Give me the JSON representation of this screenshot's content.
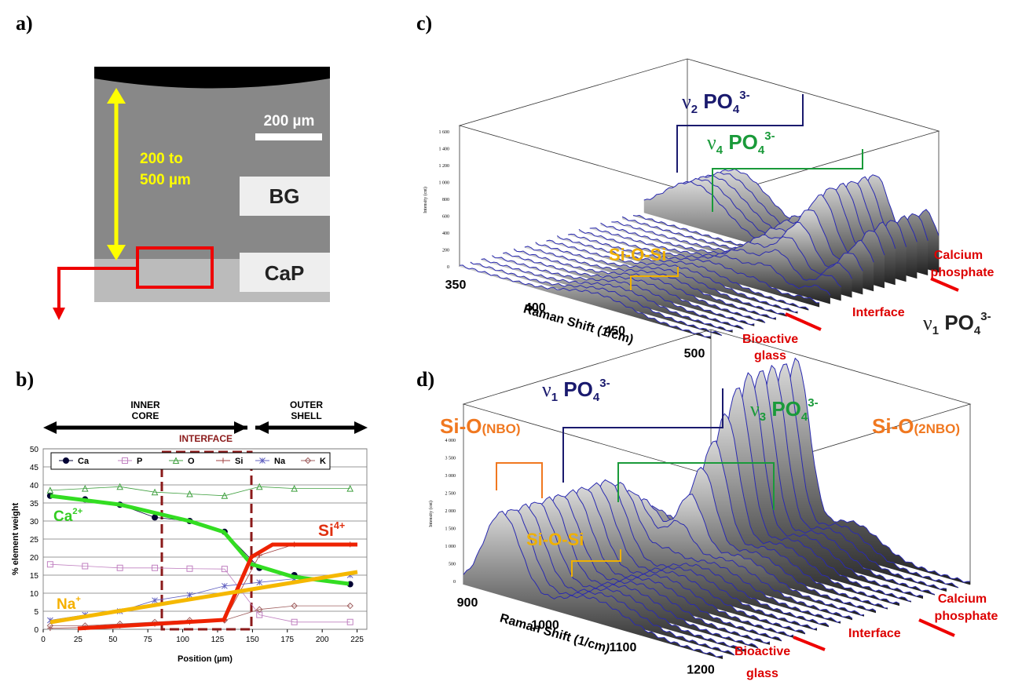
{
  "panels": {
    "a": {
      "label": "a)",
      "scale_bar": "200 µm",
      "thickness": [
        "200   to",
        "500 µm"
      ],
      "bg": "BG",
      "cap": "CaP"
    },
    "b": {
      "label": "b)",
      "inner": [
        "INNER",
        "CORE"
      ],
      "outer": [
        "OUTER",
        "SHELL"
      ],
      "interface": "INTERFACE",
      "ca_ion": [
        "Ca",
        "2+"
      ],
      "si_ion": [
        "Si",
        "4+"
      ],
      "na_ion": [
        "Na",
        "+"
      ]
    },
    "c": {
      "label": "c)",
      "y_axis": "Intensity (cnt)",
      "yticks": [
        "0",
        "200",
        "400",
        "600",
        "800",
        "1 000",
        "1 200",
        "1 400",
        "1 600"
      ],
      "xticks": [
        "350",
        "400",
        "450",
        "500"
      ],
      "x_axis": "Raman Shift (1/cm)",
      "nu2": [
        "ν",
        "2",
        " PO",
        "4",
        "3-"
      ],
      "nu4": [
        "ν",
        "4",
        " PO",
        "4",
        "3-"
      ],
      "nu1": [
        "ν",
        "1",
        " PO",
        "4",
        "3-"
      ],
      "siosi": "Si-O-Si",
      "cap": [
        "Calcium",
        "phosphate"
      ],
      "interface": "Interface",
      "glass": [
        "Bioactive",
        "glass"
      ]
    },
    "d": {
      "label": "d)",
      "y_axis": "Intensity (cnt)",
      "yticks": [
        "0",
        "500",
        "1 000",
        "1 500",
        "2 000",
        "2 500",
        "3 000",
        "3 500",
        "4 000"
      ],
      "xticks": [
        "900",
        "1000",
        "1100",
        "1200"
      ],
      "x_axis": "Raman Shift (1/cm)",
      "nu1": [
        "ν",
        "1",
        " PO",
        "4",
        "3-"
      ],
      "nu3": [
        "ν",
        "3",
        " PO",
        "4",
        "3-"
      ],
      "nbo": [
        "Si-O",
        "(NBO)"
      ],
      "nbo2": [
        "Si-O",
        "(2NBO)"
      ],
      "siosi": "Si-O-Si",
      "cap": [
        "Calcium",
        "phosphate"
      ],
      "interface": "Interface",
      "glass": [
        "Bioactive",
        "glass"
      ]
    }
  },
  "chart_data": {
    "type": "line",
    "xlabel": "Position (µm)",
    "ylabel": "% element weight",
    "x": [
      5,
      30,
      55,
      80,
      105,
      130,
      155,
      180,
      220
    ],
    "xlim": [
      0,
      232
    ],
    "xticks": [
      0,
      25,
      50,
      75,
      100,
      125,
      150,
      175,
      200,
      225
    ],
    "ylim": [
      0,
      50
    ],
    "yticks": [
      0,
      5,
      10,
      15,
      20,
      25,
      30,
      35,
      40,
      45,
      50
    ],
    "grid": true,
    "series": [
      {
        "name": "Ca",
        "color": "#000033",
        "marker": "circle",
        "values": [
          37,
          36,
          34.5,
          31,
          30,
          27,
          17,
          15,
          12.5
        ]
      },
      {
        "name": "P",
        "color": "#c080c0",
        "marker": "square",
        "values": [
          18,
          17.5,
          17,
          17,
          16.8,
          16.7,
          4,
          2,
          2
        ]
      },
      {
        "name": "O",
        "color": "#40a040",
        "marker": "triangle",
        "values": [
          38.5,
          39,
          39.5,
          38,
          37.5,
          37,
          39.5,
          39,
          39
        ]
      },
      {
        "name": "Si",
        "color": "#a04040",
        "marker": "plus",
        "values": [
          0.3,
          0.5,
          1,
          1.5,
          2,
          2.5,
          20.5,
          23.5,
          23.5
        ]
      },
      {
        "name": "Na",
        "color": "#6060c0",
        "marker": "star",
        "values": [
          2.5,
          4,
          5,
          8,
          9.5,
          12,
          13,
          14,
          15
        ]
      },
      {
        "name": "K",
        "color": "#a06060",
        "marker": "diamond",
        "values": [
          1,
          1,
          1.5,
          2,
          2.5,
          2.5,
          5.5,
          6.5,
          6.5
        ]
      }
    ]
  }
}
